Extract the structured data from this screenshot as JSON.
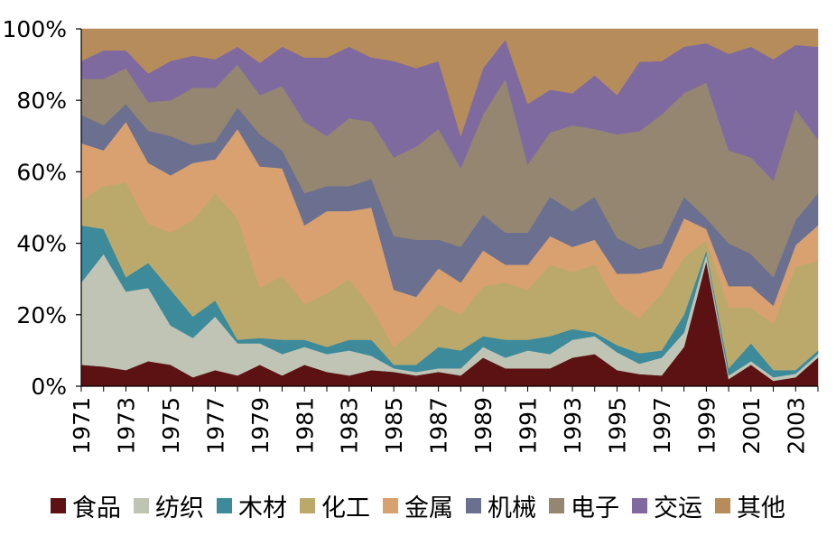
{
  "chart_data": {
    "type": "area",
    "stacked": true,
    "normalized": true,
    "title": "",
    "xlabel": "",
    "ylabel": "",
    "ylim": [
      0,
      100
    ],
    "y_ticks": [
      "0%",
      "20%",
      "40%",
      "60%",
      "80%",
      "100%"
    ],
    "x_tick_labels": [
      "1971",
      "1973",
      "1975",
      "1977",
      "1979",
      "1981",
      "1983",
      "1985",
      "1987",
      "1989",
      "1991",
      "1993",
      "1995",
      "1997",
      "1999",
      "2001",
      "2003"
    ],
    "x": [
      1971,
      1972,
      1973,
      1974,
      1975,
      1976,
      1977,
      1978,
      1979,
      1980,
      1981,
      1982,
      1983,
      1984,
      1985,
      1986,
      1987,
      1988,
      1989,
      1990,
      1991,
      1992,
      1993,
      1994,
      1995,
      1996,
      1997,
      1998,
      1999,
      2000,
      2001,
      2002,
      2003,
      2004
    ],
    "legend_position": "bottom",
    "grid": false,
    "series": [
      {
        "name": "食品",
        "color": "#5c1212",
        "values": [
          6,
          5.5,
          4.5,
          7,
          6,
          2.5,
          4.5,
          3,
          6,
          3,
          6,
          4,
          3,
          4.5,
          4,
          3,
          4,
          3,
          8,
          5,
          5,
          5,
          8,
          9,
          4.5,
          3.5,
          3,
          11,
          35,
          2,
          6,
          1.5,
          2.5,
          8
        ]
      },
      {
        "name": "纺织",
        "color": "#bfc4b5",
        "values": [
          23,
          31.5,
          22,
          20.5,
          11,
          11,
          15,
          9,
          6,
          6,
          5,
          5,
          7,
          4,
          1,
          1,
          1,
          2,
          3,
          3,
          5,
          4,
          5,
          5,
          5,
          3,
          5,
          4,
          2,
          1,
          1,
          1,
          1,
          1
        ]
      },
      {
        "name": "木材",
        "color": "#3c8a9a",
        "values": [
          16,
          7,
          4,
          7,
          10,
          6,
          4.5,
          1,
          1.5,
          4,
          2,
          2,
          3,
          4.5,
          1,
          2,
          6,
          5,
          3,
          5,
          3,
          5,
          3,
          1,
          2,
          3,
          2,
          5,
          1,
          2,
          5,
          2,
          1,
          1
        ]
      },
      {
        "name": "化工",
        "color": "#bba96c",
        "values": [
          7,
          12,
          26.5,
          11,
          16,
          27,
          30,
          34,
          14,
          18,
          10,
          15,
          17,
          9,
          5,
          10,
          12,
          10,
          14,
          16,
          14,
          20,
          16,
          19,
          12,
          10,
          16,
          16,
          3,
          17,
          10,
          13,
          29,
          25
        ]
      },
      {
        "name": "金属",
        "color": "#d9a070",
        "values": [
          16,
          10,
          17,
          17,
          16,
          16,
          9.5,
          25,
          34,
          30,
          22,
          23,
          19,
          28,
          16,
          9,
          10,
          9,
          10,
          5,
          7,
          8,
          7,
          7,
          8,
          13,
          7,
          11,
          3,
          6,
          6,
          5,
          6,
          10
        ]
      },
      {
        "name": "机械",
        "color": "#6b7090",
        "values": [
          8,
          7,
          5,
          9,
          11,
          5,
          5,
          6,
          9,
          5,
          9,
          7,
          7,
          8,
          15,
          16,
          8,
          10,
          10,
          9,
          9,
          11,
          10,
          12,
          10,
          7,
          7,
          6,
          3,
          12,
          9,
          8,
          7,
          9
        ]
      },
      {
        "name": "电子",
        "color": "#958672",
        "values": [
          10,
          13,
          10,
          8,
          10,
          16,
          15,
          12,
          11,
          18,
          20,
          14,
          19,
          16,
          22,
          26,
          31,
          22,
          28,
          43,
          19,
          18,
          24,
          19,
          29,
          34,
          36,
          29,
          38,
          26,
          27,
          27,
          31,
          15
        ]
      },
      {
        "name": "交运",
        "color": "#7e6a9e",
        "values": [
          5,
          8,
          5,
          8,
          11,
          9,
          8,
          5,
          9,
          11,
          18,
          22,
          20,
          18,
          27,
          22,
          19,
          9,
          13,
          11,
          17,
          12,
          9,
          15,
          11,
          20,
          15,
          13,
          11,
          27,
          31,
          34,
          18,
          26
        ]
      },
      {
        "name": "其他",
        "color": "#b78c5b",
        "values": [
          9,
          6,
          6,
          12.5,
          9,
          7.5,
          8.5,
          5,
          9.5,
          5,
          8,
          8,
          5,
          8,
          9,
          11,
          9,
          30,
          11,
          3,
          21,
          17,
          18,
          13,
          18.5,
          9.5,
          9,
          5,
          4,
          7,
          5,
          8.5,
          4.5,
          5
        ]
      }
    ]
  }
}
